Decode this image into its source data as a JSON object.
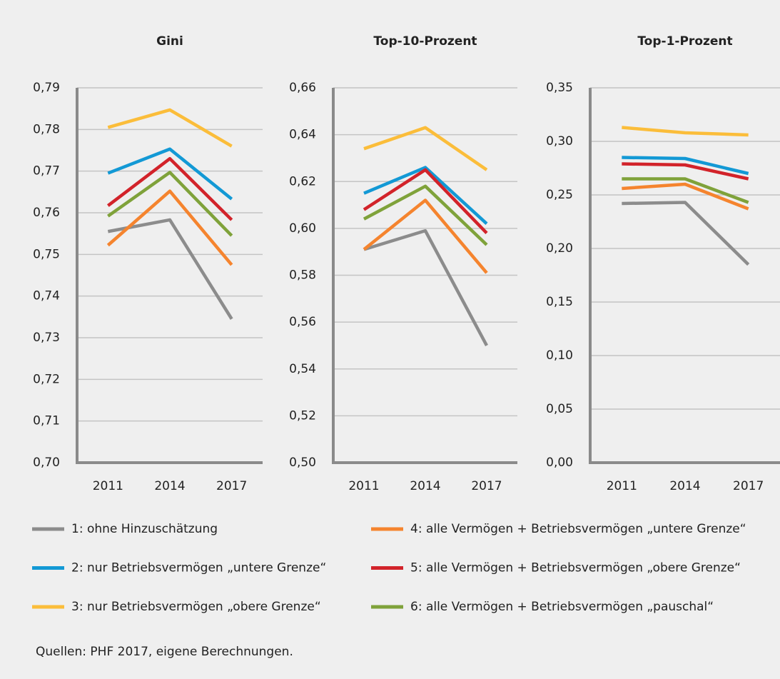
{
  "chart_data": [
    {
      "type": "line",
      "title": "Gini",
      "categories": [
        "2011",
        "2014",
        "2017"
      ],
      "series": [
        {
          "name": "1: ohne Hinzuschätzung",
          "color": "#8c8c8c",
          "values": [
            0.7555,
            0.7583,
            0.7345
          ]
        },
        {
          "name": "2: nur Betriebsvermögen „untere Grenze“",
          "color": "#1399d5",
          "values": [
            0.7695,
            0.7753,
            0.7633
          ]
        },
        {
          "name": "3: nur Betriebsvermögen „obere Grenze“",
          "color": "#fbbd3a",
          "values": [
            0.7805,
            0.7847,
            0.776
          ]
        },
        {
          "name": "4: alle Vermögen + Betriebsvermögen „untere Grenze“",
          "color": "#f5842e",
          "values": [
            0.7522,
            0.7652,
            0.7475
          ]
        },
        {
          "name": "5: alle Vermögen + Betriebsvermögen „obere Grenze“",
          "color": "#d2232a",
          "values": [
            0.7617,
            0.773,
            0.7583
          ]
        },
        {
          "name": "6: alle Vermögen + Betriebsvermögen „pauschal“",
          "color": "#7fa23a",
          "values": [
            0.7592,
            0.7697,
            0.7545
          ]
        }
      ],
      "ylim": [
        0.7,
        0.79
      ],
      "yticks": [
        {
          "value": 0.7,
          "label": "0,70"
        },
        {
          "value": 0.71,
          "label": "0,71"
        },
        {
          "value": 0.72,
          "label": "0,72"
        },
        {
          "value": 0.73,
          "label": "0,73"
        },
        {
          "value": 0.74,
          "label": "0,74"
        },
        {
          "value": 0.75,
          "label": "0,75"
        },
        {
          "value": 0.76,
          "label": "0,76"
        },
        {
          "value": 0.77,
          "label": "0,77"
        },
        {
          "value": 0.78,
          "label": "0,78"
        },
        {
          "value": 0.79,
          "label": "0,79"
        }
      ],
      "grid": true
    },
    {
      "type": "line",
      "title": "Top-10-Prozent",
      "categories": [
        "2011",
        "2014",
        "2017"
      ],
      "series": [
        {
          "color": "#8c8c8c",
          "values": [
            0.591,
            0.599,
            0.55
          ]
        },
        {
          "color": "#1399d5",
          "values": [
            0.615,
            0.626,
            0.602
          ]
        },
        {
          "color": "#fbbd3a",
          "values": [
            0.634,
            0.643,
            0.625
          ]
        },
        {
          "color": "#f5842e",
          "values": [
            0.591,
            0.612,
            0.581
          ]
        },
        {
          "color": "#d2232a",
          "values": [
            0.608,
            0.625,
            0.598
          ]
        },
        {
          "color": "#7fa23a",
          "values": [
            0.604,
            0.618,
            0.593
          ]
        }
      ],
      "ylim": [
        0.5,
        0.66
      ],
      "yticks": [
        {
          "value": 0.5,
          "label": "0,50"
        },
        {
          "value": 0.52,
          "label": "0,52"
        },
        {
          "value": 0.54,
          "label": "0,54"
        },
        {
          "value": 0.56,
          "label": "0,56"
        },
        {
          "value": 0.58,
          "label": "0,58"
        },
        {
          "value": 0.6,
          "label": "0,60"
        },
        {
          "value": 0.62,
          "label": "0,62"
        },
        {
          "value": 0.64,
          "label": "0,64"
        },
        {
          "value": 0.66,
          "label": "0,66"
        }
      ],
      "grid": true
    },
    {
      "type": "line",
      "title": "Top-1-Prozent",
      "categories": [
        "2011",
        "2014",
        "2017"
      ],
      "series": [
        {
          "color": "#8c8c8c",
          "values": [
            0.242,
            0.243,
            0.185
          ]
        },
        {
          "color": "#1399d5",
          "values": [
            0.285,
            0.284,
            0.27
          ]
        },
        {
          "color": "#fbbd3a",
          "values": [
            0.313,
            0.308,
            0.306
          ]
        },
        {
          "color": "#f5842e",
          "values": [
            0.256,
            0.26,
            0.237
          ]
        },
        {
          "color": "#d2232a",
          "values": [
            0.279,
            0.278,
            0.265
          ]
        },
        {
          "color": "#7fa23a",
          "values": [
            0.265,
            0.265,
            0.243
          ]
        }
      ],
      "ylim": [
        0.0,
        0.35
      ],
      "yticks": [
        {
          "value": 0.0,
          "label": "0,00"
        },
        {
          "value": 0.05,
          "label": "0,05"
        },
        {
          "value": 0.1,
          "label": "0,10"
        },
        {
          "value": 0.15,
          "label": "0,15"
        },
        {
          "value": 0.2,
          "label": "0,20"
        },
        {
          "value": 0.25,
          "label": "0,25"
        },
        {
          "value": 0.3,
          "label": "0,30"
        },
        {
          "value": 0.35,
          "label": "0,35"
        }
      ],
      "grid": true
    }
  ],
  "source": "Quellen: PHF 2017, eigene Berechnungen."
}
